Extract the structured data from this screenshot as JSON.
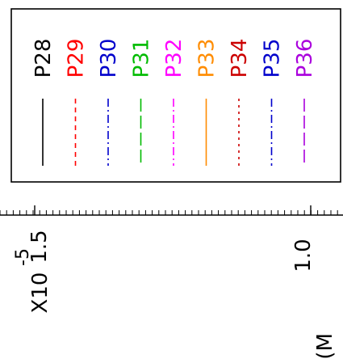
{
  "chart_data": {
    "type": "line",
    "title": "",
    "xlabel": "(M",
    "ylabel": "",
    "x_multiplier_label": "X10",
    "x_multiplier_exponent": "-5",
    "x_tick_labels": [
      "1.5",
      "1.0"
    ],
    "legend_position": "top",
    "grid": false,
    "series": [
      {
        "name": "P28",
        "color": "#000000",
        "dash": "solid"
      },
      {
        "name": "P29",
        "color": "#ff0000",
        "dash": "dashed"
      },
      {
        "name": "P30",
        "color": "#0000cc",
        "dash": "dash-dot"
      },
      {
        "name": "P31",
        "color": "#00bb00",
        "dash": "long-dash"
      },
      {
        "name": "P32",
        "color": "#ff00ff",
        "dash": "dash-dot"
      },
      {
        "name": "P33",
        "color": "#ff8c00",
        "dash": "solid"
      },
      {
        "name": "P34",
        "color": "#cc0000",
        "dash": "dotted"
      },
      {
        "name": "P35",
        "color": "#0000cc",
        "dash": "dash-dot"
      },
      {
        "name": "P36",
        "color": "#aa00dd",
        "dash": "long-dash"
      }
    ]
  }
}
